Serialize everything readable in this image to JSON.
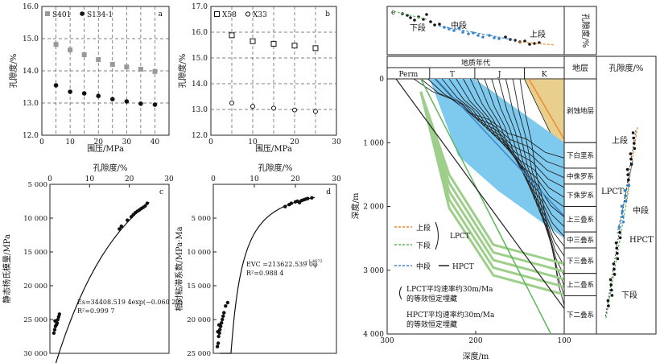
{
  "chart_data": [
    {
      "id": "a",
      "type": "scatter",
      "panel_label": "a",
      "xlabel": "围压/MPa",
      "ylabel": "孔隙度/%",
      "xlim": [
        0,
        45
      ],
      "ylim": [
        12.0,
        16.0
      ],
      "xticks": [
        "0",
        "10",
        "20",
        "30",
        "40"
      ],
      "yticks": [
        "12.0",
        "13.0",
        "14.0",
        "15.0",
        "16.0"
      ],
      "series": [
        {
          "name": "S401",
          "marker": "square-gray",
          "x": [
            5,
            10,
            15,
            20,
            25,
            30,
            35,
            40
          ],
          "y": [
            14.82,
            14.65,
            14.5,
            14.35,
            14.2,
            14.12,
            14.05,
            13.98
          ]
        },
        {
          "name": "S134-1",
          "marker": "circle-black",
          "x": [
            5,
            10,
            15,
            20,
            25,
            30,
            35,
            40
          ],
          "y": [
            13.55,
            13.35,
            13.3,
            13.22,
            13.12,
            13.05,
            12.98,
            12.95
          ]
        }
      ]
    },
    {
      "id": "b",
      "type": "scatter",
      "panel_label": "b",
      "xlabel": "围压/MPa",
      "ylabel": "孔隙度/%",
      "xlim": [
        0,
        30
      ],
      "ylim": [
        12.0,
        17.0
      ],
      "xticks": [
        "0",
        "10",
        "20",
        "30"
      ],
      "yticks": [
        "12.0",
        "13.0",
        "14.0",
        "15.0",
        "16.0",
        "17.0"
      ],
      "series": [
        {
          "name": "X58",
          "marker": "square-open",
          "x": [
            5,
            10,
            15,
            20,
            25
          ],
          "y": [
            15.88,
            15.65,
            15.55,
            15.48,
            15.38
          ]
        },
        {
          "name": "X33",
          "marker": "circle-open",
          "x": [
            5,
            10,
            15,
            20,
            25
          ],
          "y": [
            13.25,
            13.12,
            13.05,
            12.98,
            12.92
          ]
        }
      ]
    },
    {
      "id": "c",
      "type": "scatter",
      "panel_label": "c",
      "xlabel": "孔隙度/%",
      "ylabel": "静态杨氏模量/MPa",
      "xlim": [
        0,
        30
      ],
      "ylim_reversed": [
        5000,
        30000
      ],
      "xticks": [
        "0",
        "10",
        "20",
        "30"
      ],
      "yticks": [
        "5 000",
        "10 000",
        "15 000",
        "20 000",
        "25 000",
        "30 000"
      ],
      "equation": "Es=34408.519 4exp(−0.060 2φ)",
      "r2_text": "R²=0.999 7",
      "fit_a": 34408.5194,
      "fit_b": -0.0602,
      "x": [
        1.0,
        1.2,
        1.4,
        1.6,
        1.8,
        2.0,
        2.2,
        2.4,
        1.3,
        1.7,
        17.5,
        18.0,
        19.5,
        20.5,
        21.0,
        21.5,
        22.0,
        22.5,
        23.0,
        23.5,
        24.0,
        24.5
      ],
      "y": [
        27000,
        26500,
        26000,
        25800,
        25500,
        25000,
        24600,
        24200,
        25200,
        25700,
        11600,
        11200,
        10300,
        9800,
        9500,
        9200,
        9000,
        8800,
        8600,
        8400,
        8200,
        7800
      ]
    },
    {
      "id": "d",
      "type": "scatter",
      "panel_label": "d",
      "xlabel": "孔隙度/%",
      "ylabel": "相对粘滞系数/MPa·Ma",
      "xlim": [
        0,
        30
      ],
      "ylim_reversed": [
        0,
        25000
      ],
      "xticks": [
        "0",
        "10",
        "20",
        "30"
      ],
      "yticks": [
        "5 000",
        "10 000",
        "15 000",
        "20 000",
        "25 000"
      ],
      "equation": "EVC =213622.539 0φ",
      "equation_exp": "−1.4672",
      "r2_text": "R²=0.988 4",
      "fit_a": 213622.539,
      "fit_b": -1.4672,
      "x": [
        1.0,
        1.2,
        1.3,
        1.5,
        1.6,
        1.8,
        2.0,
        2.2,
        2.4,
        2.6,
        3.0,
        3.5,
        1.1,
        1.4,
        17.5,
        18.5,
        19.0,
        20.0,
        20.5,
        21.0,
        21.5,
        22.0,
        22.5,
        23.0,
        24.0
      ],
      "y": [
        24000,
        23500,
        22500,
        22000,
        21500,
        21000,
        20500,
        20000,
        19500,
        19000,
        18000,
        17500,
        21800,
        20800,
        3300,
        3000,
        2800,
        2600,
        2500,
        2700,
        2400,
        2300,
        2200,
        2100,
        2000
      ]
    },
    {
      "id": "e",
      "type": "burial-history",
      "panel_label": "e",
      "xlabel": "深度/m",
      "ylabel": "深度/m",
      "xticks": [
        "300",
        "200",
        "100"
      ],
      "yticks": [
        "0",
        "1 000",
        "2 000",
        "3 000",
        "4 000"
      ],
      "x_title": "地质年代",
      "eras": [
        "Perm",
        "T",
        "J",
        "K"
      ],
      "strata_header": "地层",
      "porosity_header": "孔隙度/%",
      "strata": [
        "剥蚀地层",
        "下白垩系",
        "中侏罗系",
        "下侏罗系",
        "上三叠系",
        "中三叠系",
        "下三叠系",
        "上二叠系",
        "下二叠系"
      ],
      "inset_labels": {
        "lower": "下段",
        "middle": "中段",
        "upper": "上段"
      },
      "right_labels": {
        "upper": "上段",
        "lpct": "LPCT",
        "middle": "中段",
        "hpct": "HPCT",
        "lower": "下段"
      },
      "legend": {
        "upper": "上段",
        "lower": "下段",
        "lpct": "LPCT",
        "middle": "中段",
        "hpct": "HPCT",
        "note1_line1": "LPCT平均速率约30m/Ma",
        "note1_line2": "的等效恒定埋藏",
        "note2_line1": "HPCT平均速率约30m/Ma",
        "note2_line2": "的等效恒定埋藏"
      },
      "colors": {
        "orange": "#f08a30",
        "green": "#5cb85c",
        "blue": "#3a86c8",
        "cyan_fill": "#7ec9ee",
        "tan_fill": "#e8cf8e",
        "strata_fill": "#9dcf8a"
      }
    }
  ]
}
